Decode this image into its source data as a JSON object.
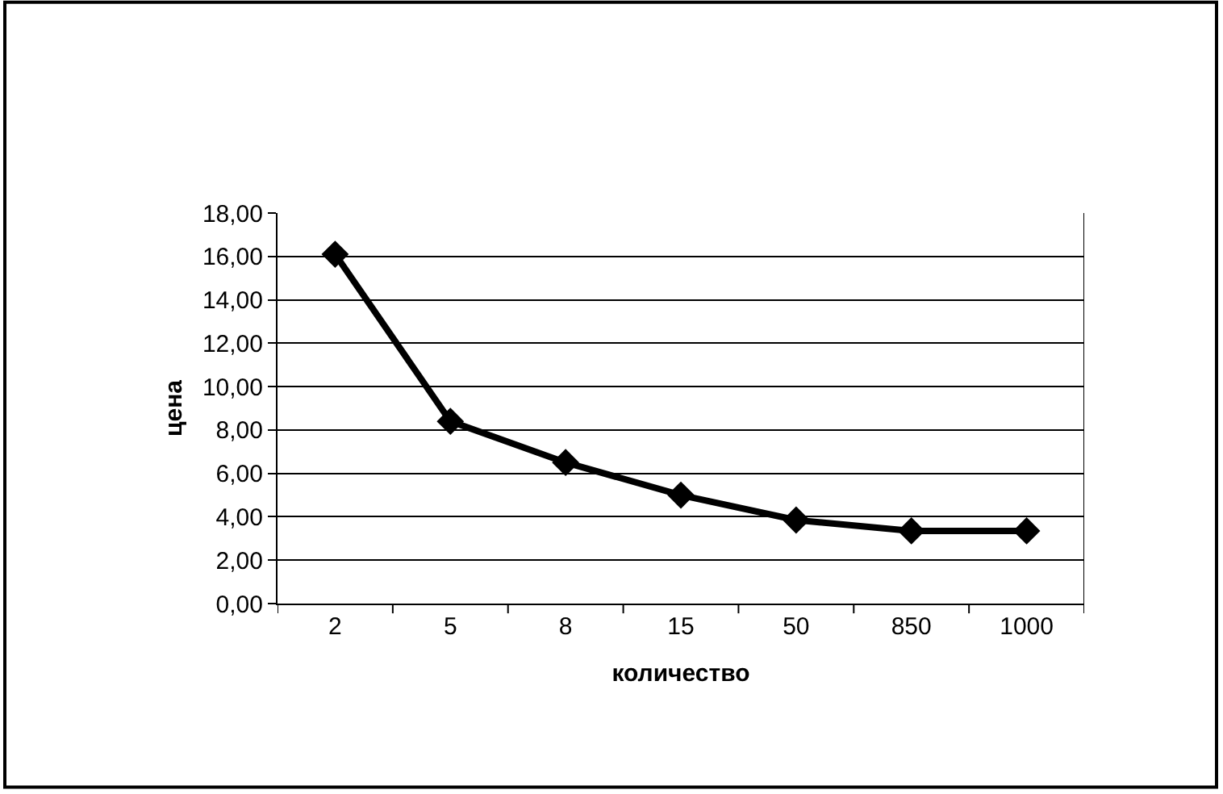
{
  "chart_data": {
    "type": "line",
    "xlabel": "количество",
    "ylabel": "цена",
    "categories": [
      "2",
      "5",
      "8",
      "15",
      "50",
      "850",
      "1000"
    ],
    "series": [
      {
        "color": "#000000",
        "values": [
          16.1,
          8.4,
          6.5,
          5.0,
          3.85,
          3.35,
          3.35
        ]
      }
    ],
    "ylim": [
      0,
      18
    ],
    "yticks": [
      {
        "value": 0,
        "label": "0,00"
      },
      {
        "value": 2,
        "label": "2,00"
      },
      {
        "value": 4,
        "label": "4,00"
      },
      {
        "value": 6,
        "label": "6,00"
      },
      {
        "value": 8,
        "label": "8,00"
      },
      {
        "value": 10,
        "label": "10,00"
      },
      {
        "value": 12,
        "label": "12,00"
      },
      {
        "value": 14,
        "label": "14,00"
      },
      {
        "value": 16,
        "label": "16,00"
      },
      {
        "value": 18,
        "label": "18,00"
      }
    ],
    "grid": "y",
    "marker": "diamond",
    "line_style": "solid"
  }
}
